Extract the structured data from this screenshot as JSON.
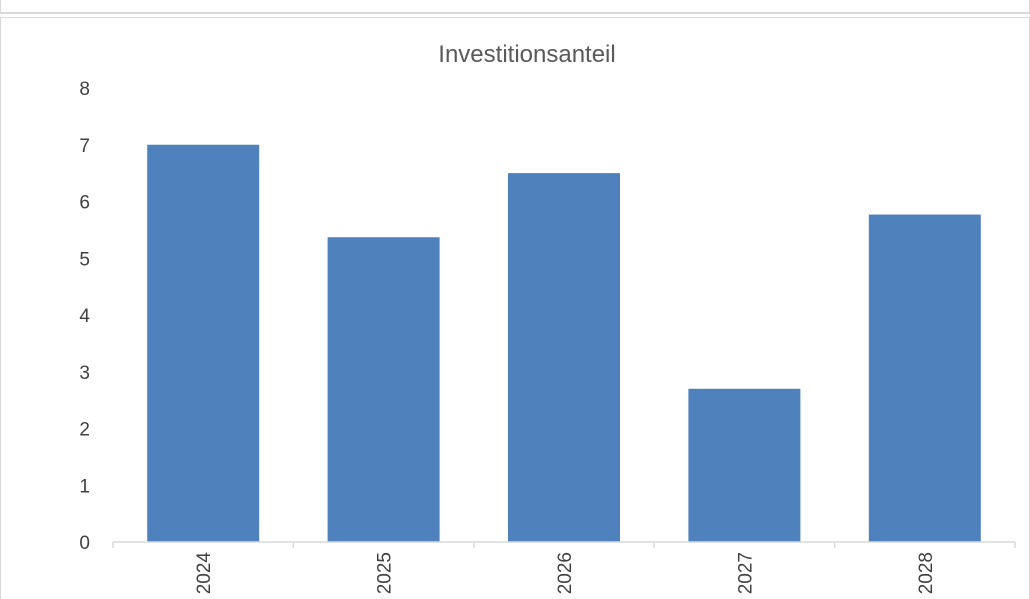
{
  "chart_data": {
    "type": "bar",
    "title": "Investitionsanteil",
    "xlabel": "",
    "ylabel": "",
    "categories": [
      "2024",
      "2025",
      "2026",
      "2027",
      "2028"
    ],
    "values": [
      7.0,
      5.37,
      6.5,
      2.7,
      5.77
    ],
    "ylim": [
      0,
      8
    ],
    "yticks": [
      "0",
      "1",
      "2",
      "3",
      "4",
      "5",
      "6",
      "7",
      "8"
    ],
    "grid": false,
    "legend": "none",
    "bar_color": "#4f81bd",
    "axis_color": "#d9d9d9",
    "text_color": "#404040"
  }
}
